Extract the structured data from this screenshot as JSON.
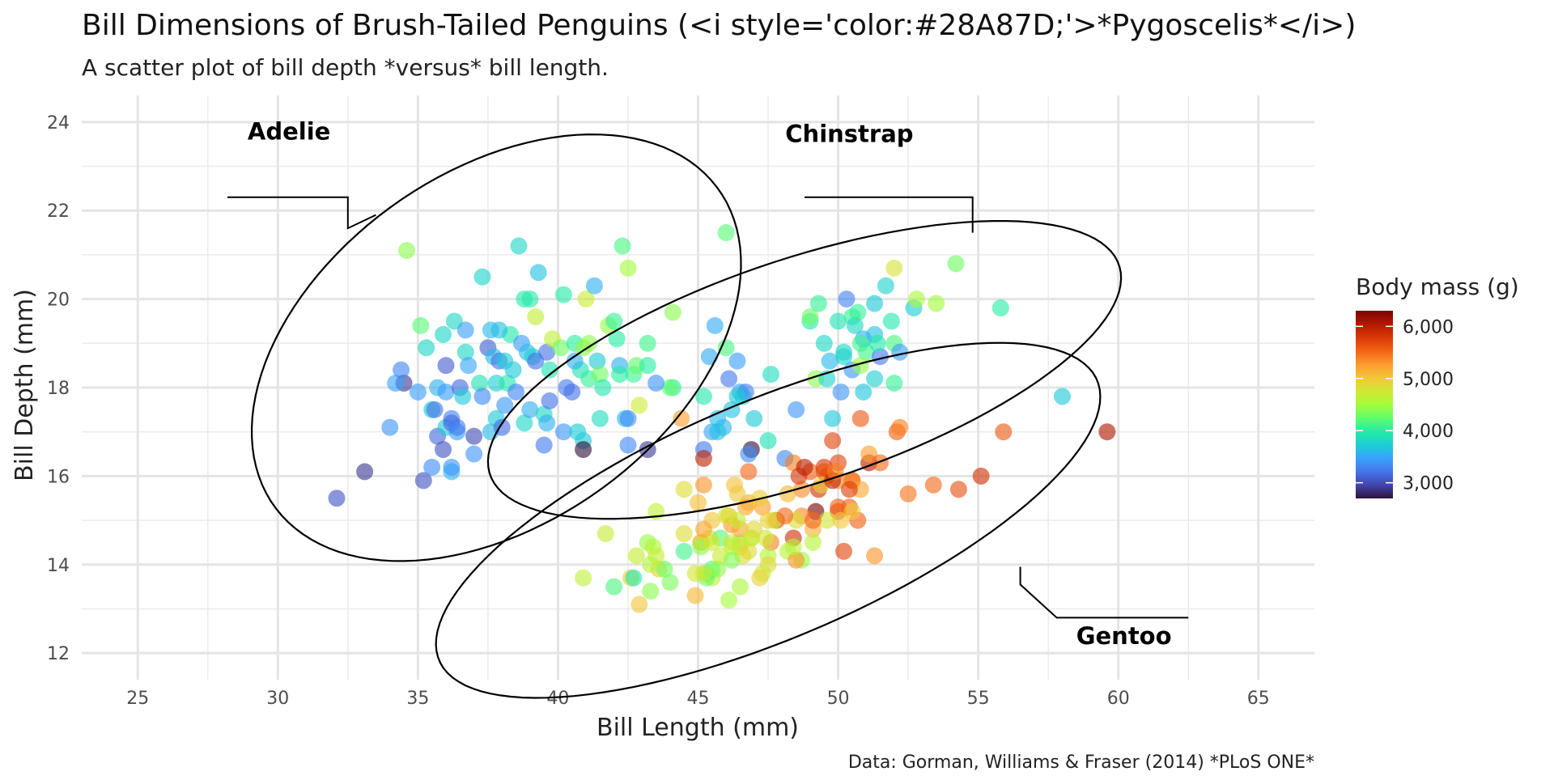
{
  "title": "Bill Dimensions of Brush-Tailed Penguins (<i style='color:#28A87D;'>*Pygoscelis*</i>)",
  "subtitle": "A scatter plot of bill depth *versus* bill length.",
  "caption": "Data: Gorman, Williams & Fraser (2014) *PLoS ONE*",
  "chart_data": {
    "type": "scatter",
    "xlabel": "Bill Length (mm)",
    "ylabel": "Bill Depth (mm)",
    "xlim": [
      23,
      67
    ],
    "ylim": [
      11.4,
      24.6
    ],
    "x_ticks": [
      "25",
      "30",
      "35",
      "40",
      "45",
      "50",
      "55",
      "60",
      "65"
    ],
    "y_ticks": [
      "12",
      "14",
      "16",
      "18",
      "20",
      "22",
      "24"
    ],
    "grid": true,
    "legend": {
      "title": "Body mass (g)",
      "placement": "right",
      "ticks": [
        "3,000",
        "4,000",
        "5,000",
        "6,000"
      ],
      "range": [
        2700,
        6300
      ],
      "palette": [
        "#30123B",
        "#4145AB",
        "#4675ED",
        "#39A2FC",
        "#1BCFD4",
        "#24ECA6",
        "#61FC6C",
        "#A4FC3B",
        "#D1E834",
        "#F3C63A",
        "#FE9B2D",
        "#F36315",
        "#D93806",
        "#B11901",
        "#7A0403"
      ]
    },
    "groups": [
      {
        "label": "Adelie",
        "center": [
          37.8,
          18.9
        ],
        "semi_x": 9.0,
        "semi_y": 4.3,
        "angle_deg": 16
      },
      {
        "label": "Chinstrap",
        "center": [
          48.8,
          18.4
        ],
        "semi_x": 11.5,
        "semi_y": 2.6,
        "angle_deg": 11
      },
      {
        "label": "Gentoo",
        "center": [
          47.5,
          15.0
        ],
        "semi_x": 12.2,
        "semi_y": 2.8,
        "angle_deg": 14
      }
    ],
    "points": [
      [
        32.1,
        15.5,
        3050
      ],
      [
        33.1,
        16.1,
        2900
      ],
      [
        34.5,
        18.1,
        2900
      ],
      [
        34.6,
        21.1,
        4400
      ],
      [
        34.0,
        17.1,
        3400
      ],
      [
        34.2,
        18.1,
        3475
      ],
      [
        34.4,
        18.4,
        3325
      ],
      [
        35.0,
        17.9,
        3450
      ],
      [
        35.1,
        19.4,
        4200
      ],
      [
        35.2,
        15.9,
        3050
      ],
      [
        35.3,
        18.9,
        3800
      ],
      [
        35.5,
        16.2,
        3350
      ],
      [
        35.5,
        17.5,
        3700
      ],
      [
        35.6,
        17.5,
        3200
      ],
      [
        35.7,
        16.9,
        3150
      ],
      [
        35.7,
        18.0,
        3550
      ],
      [
        35.9,
        19.2,
        3800
      ],
      [
        35.9,
        16.6,
        3050
      ],
      [
        36.0,
        17.9,
        3450
      ],
      [
        36.0,
        18.5,
        3100
      ],
      [
        36.0,
        17.1,
        3700
      ],
      [
        36.2,
        16.1,
        3550
      ],
      [
        36.2,
        17.3,
        3300
      ],
      [
        36.2,
        17.2,
        3150
      ],
      [
        36.3,
        19.5,
        3800
      ],
      [
        36.4,
        17.0,
        3450
      ],
      [
        36.5,
        18.0,
        3150
      ],
      [
        36.6,
        17.8,
        3700
      ],
      [
        36.7,
        18.8,
        3800
      ],
      [
        36.7,
        19.3,
        3450
      ],
      [
        36.8,
        18.5,
        3500
      ],
      [
        37.0,
        16.9,
        3000
      ],
      [
        37.2,
        18.1,
        3900
      ],
      [
        37.3,
        17.8,
        3350
      ],
      [
        37.5,
        18.9,
        3100
      ],
      [
        37.6,
        17.0,
        3600
      ],
      [
        37.7,
        18.7,
        3600
      ],
      [
        37.8,
        17.3,
        3700
      ],
      [
        37.8,
        18.1,
        3750
      ],
      [
        37.9,
        18.6,
        3200
      ],
      [
        38.1,
        18.6,
        3700
      ],
      [
        38.1,
        17.6,
        3425
      ],
      [
        38.2,
        18.1,
        3950
      ],
      [
        38.3,
        19.2,
        3950
      ],
      [
        38.5,
        17.9,
        3325
      ],
      [
        38.6,
        21.2,
        3800
      ],
      [
        38.7,
        19.0,
        3450
      ],
      [
        38.8,
        17.2,
        3800
      ],
      [
        38.9,
        18.8,
        3600
      ],
      [
        39.0,
        17.5,
        3550
      ],
      [
        39.1,
        18.7,
        3750
      ],
      [
        39.2,
        19.6,
        4675
      ],
      [
        39.3,
        20.6,
        3650
      ],
      [
        39.5,
        17.4,
        3800
      ],
      [
        39.6,
        18.8,
        3200
      ],
      [
        39.7,
        18.4,
        3900
      ],
      [
        39.8,
        19.1,
        4650
      ],
      [
        40.1,
        18.9,
        4300
      ],
      [
        40.2,
        17.0,
        3400
      ],
      [
        40.3,
        18.0,
        3250
      ],
      [
        40.5,
        17.9,
        3200
      ],
      [
        40.6,
        19.0,
        4000
      ],
      [
        40.7,
        17.0,
        3725
      ],
      [
        40.8,
        18.4,
        3900
      ],
      [
        40.9,
        16.8,
        3700
      ],
      [
        41.0,
        20.0,
        4725
      ],
      [
        41.1,
        18.2,
        4050
      ],
      [
        41.3,
        20.3,
        3550
      ],
      [
        41.4,
        18.6,
        3700
      ],
      [
        41.5,
        18.3,
        4300
      ],
      [
        41.6,
        18.0,
        3950
      ],
      [
        41.8,
        19.4,
        4450
      ],
      [
        42.0,
        19.5,
        4050
      ],
      [
        42.1,
        19.1,
        4000
      ],
      [
        42.2,
        18.5,
        3550
      ],
      [
        42.3,
        21.2,
        4150
      ],
      [
        42.5,
        20.7,
        4500
      ],
      [
        42.7,
        18.3,
        4075
      ],
      [
        42.8,
        18.5,
        4250
      ],
      [
        42.9,
        17.6,
        4725
      ],
      [
        43.2,
        19.0,
        4100
      ],
      [
        43.2,
        18.5,
        4000
      ],
      [
        44.1,
        19.7,
        4400
      ],
      [
        44.1,
        18.0,
        4000
      ],
      [
        38.0,
        17.1,
        3175
      ],
      [
        39.2,
        18.6,
        3200
      ],
      [
        37.0,
        16.5,
        3400
      ],
      [
        40.6,
        18.6,
        3550
      ],
      [
        39.7,
        17.7,
        3200
      ],
      [
        41.5,
        17.3,
        3850
      ],
      [
        44.0,
        18.0,
        4250
      ],
      [
        36.4,
        17.1,
        3250
      ],
      [
        38.4,
        18.4,
        3700
      ],
      [
        37.3,
        20.5,
        3775
      ],
      [
        36.2,
        16.2,
        3400
      ],
      [
        37.9,
        19.3,
        3650
      ],
      [
        41.1,
        19.0,
        4400
      ],
      [
        38.8,
        20.0,
        3950
      ],
      [
        39.6,
        17.2,
        3550
      ],
      [
        40.9,
        18.9,
        4400
      ],
      [
        39.5,
        16.7,
        3250
      ],
      [
        40.2,
        20.1,
        3975
      ],
      [
        39.0,
        20.0,
        3975
      ],
      [
        42.2,
        18.3,
        4000
      ],
      [
        37.6,
        19.3,
        3600
      ],
      [
        46.5,
        17.9,
        3500
      ],
      [
        50.0,
        19.5,
        3900
      ],
      [
        51.3,
        19.2,
        3650
      ],
      [
        45.4,
        18.7,
        3525
      ],
      [
        52.7,
        19.8,
        3725
      ],
      [
        45.2,
        17.8,
        3950
      ],
      [
        46.1,
        18.2,
        3250
      ],
      [
        51.3,
        18.2,
        3750
      ],
      [
        46.0,
        18.9,
        4150
      ],
      [
        51.3,
        19.9,
        3700
      ],
      [
        46.6,
        17.8,
        3800
      ],
      [
        51.7,
        20.3,
        3775
      ],
      [
        47.0,
        17.3,
        3700
      ],
      [
        52.0,
        18.1,
        4050
      ],
      [
        45.9,
        17.1,
        3575
      ],
      [
        50.5,
        19.6,
        4050
      ],
      [
        50.3,
        20.0,
        3300
      ],
      [
        58.0,
        17.8,
        3700
      ],
      [
        46.4,
        18.6,
        3450
      ],
      [
        49.2,
        18.2,
        4400
      ],
      [
        42.4,
        17.3,
        3600
      ],
      [
        48.5,
        17.5,
        3400
      ],
      [
        43.2,
        16.6,
        2900
      ],
      [
        50.6,
        19.4,
        3800
      ],
      [
        46.7,
        17.9,
        3300
      ],
      [
        52.0,
        19.0,
        4150
      ],
      [
        50.5,
        18.4,
        3400
      ],
      [
        49.5,
        19.0,
        3800
      ],
      [
        46.4,
        17.8,
        3700
      ],
      [
        52.8,
        20.0,
        4550
      ],
      [
        40.9,
        16.6,
        2700
      ],
      [
        54.2,
        20.8,
        4300
      ],
      [
        42.5,
        16.7,
        3350
      ],
      [
        51.0,
        18.8,
        4100
      ],
      [
        49.7,
        18.6,
        3600
      ],
      [
        47.5,
        16.8,
        3900
      ],
      [
        47.6,
        18.3,
        3850
      ],
      [
        52.0,
        20.7,
        4800
      ],
      [
        46.9,
        16.6,
        2700
      ],
      [
        53.5,
        19.9,
        4500
      ],
      [
        49.0,
        19.5,
        3950
      ],
      [
        46.2,
        17.5,
        3650
      ],
      [
        50.9,
        19.1,
        3550
      ],
      [
        45.5,
        17.0,
        3500
      ],
      [
        50.9,
        17.9,
        3675
      ],
      [
        50.8,
        18.5,
        4450
      ],
      [
        50.1,
        17.9,
        3400
      ],
      [
        49.0,
        19.6,
        4300
      ],
      [
        51.5,
        18.7,
        3250
      ],
      [
        49.8,
        17.3,
        3675
      ],
      [
        48.1,
        16.4,
        3325
      ],
      [
        51.4,
        19.0,
        3950
      ],
      [
        45.7,
        17.3,
        3600
      ],
      [
        50.7,
        19.7,
        4050
      ],
      [
        42.5,
        17.3,
        3350
      ],
      [
        52.2,
        18.8,
        3450
      ],
      [
        45.2,
        16.6,
        3250
      ],
      [
        49.3,
        19.9,
        4050
      ],
      [
        50.2,
        18.8,
        3800
      ],
      [
        45.6,
        19.4,
        3525
      ],
      [
        51.9,
        19.5,
        3950
      ],
      [
        46.8,
        16.5,
        3350
      ],
      [
        45.7,
        17.0,
        3650
      ],
      [
        55.8,
        19.8,
        4000
      ],
      [
        43.5,
        18.1,
        3400
      ],
      [
        49.6,
        18.2,
        3775
      ],
      [
        50.8,
        19.0,
        4100
      ],
      [
        50.2,
        18.7,
        3775
      ],
      [
        46.0,
        21.5,
        4200
      ],
      [
        46.1,
        13.2,
        4500
      ],
      [
        50.0,
        16.3,
        5700
      ],
      [
        48.7,
        14.1,
        4450
      ],
      [
        50.0,
        15.2,
        5700
      ],
      [
        47.6,
        14.5,
        5400
      ],
      [
        46.5,
        13.5,
        4550
      ],
      [
        45.4,
        14.6,
        4800
      ],
      [
        46.7,
        15.3,
        5200
      ],
      [
        43.3,
        13.4,
        4400
      ],
      [
        46.8,
        15.4,
        5150
      ],
      [
        40.9,
        13.7,
        4650
      ],
      [
        49.0,
        16.1,
        5550
      ],
      [
        45.5,
        13.7,
        4650
      ],
      [
        48.4,
        14.6,
        5850
      ],
      [
        45.8,
        14.6,
        4200
      ],
      [
        49.3,
        15.7,
        5850
      ],
      [
        42.0,
        13.5,
        4150
      ],
      [
        49.2,
        15.2,
        6300
      ],
      [
        46.2,
        14.5,
        4800
      ],
      [
        48.7,
        15.1,
        5350
      ],
      [
        50.2,
        14.3,
        5700
      ],
      [
        45.1,
        14.5,
        5000
      ],
      [
        46.5,
        14.5,
        4400
      ],
      [
        46.3,
        15.8,
        5050
      ],
      [
        42.9,
        13.1,
        5000
      ],
      [
        46.1,
        15.1,
        5100
      ],
      [
        44.5,
        14.3,
        4100
      ],
      [
        47.8,
        15.0,
        5650
      ],
      [
        48.2,
        14.3,
        4600
      ],
      [
        50.0,
        15.3,
        5550
      ],
      [
        47.3,
        15.3,
        5250
      ],
      [
        42.8,
        14.2,
        4700
      ],
      [
        45.1,
        14.5,
        5050
      ],
      [
        59.6,
        17.0,
        6050
      ],
      [
        49.1,
        14.8,
        5150
      ],
      [
        48.4,
        16.3,
        5400
      ],
      [
        42.6,
        13.7,
        4950
      ],
      [
        44.4,
        17.3,
        5250
      ],
      [
        44.0,
        13.6,
        4350
      ],
      [
        48.7,
        15.7,
        5350
      ],
      [
        42.7,
        13.7,
        3950
      ],
      [
        49.6,
        16.0,
        5700
      ],
      [
        45.3,
        13.7,
        4300
      ],
      [
        49.6,
        15.0,
        4750
      ],
      [
        50.5,
        15.9,
        5550
      ],
      [
        43.6,
        13.9,
        4900
      ],
      [
        45.5,
        13.9,
        4200
      ],
      [
        50.5,
        15.9,
        5400
      ],
      [
        44.9,
        13.3,
        5100
      ],
      [
        45.2,
        15.8,
        5300
      ],
      [
        46.6,
        14.2,
        4850
      ],
      [
        48.5,
        14.1,
        5300
      ],
      [
        45.1,
        14.4,
        4400
      ],
      [
        50.1,
        15.0,
        5000
      ],
      [
        46.5,
        14.4,
        4900
      ],
      [
        45.0,
        15.4,
        5050
      ],
      [
        43.8,
        13.9,
        4300
      ],
      [
        45.5,
        15.0,
        5000
      ],
      [
        43.2,
        14.5,
        4450
      ],
      [
        50.4,
        15.3,
        5550
      ],
      [
        45.3,
        13.8,
        4200
      ],
      [
        46.2,
        14.9,
        5300
      ],
      [
        45.7,
        13.9,
        4400
      ],
      [
        54.3,
        15.7,
        5650
      ],
      [
        45.8,
        14.2,
        4700
      ],
      [
        49.8,
        16.8,
        5700
      ],
      [
        46.2,
        14.4,
        4650
      ],
      [
        49.5,
        16.2,
        5800
      ],
      [
        43.5,
        14.2,
        4700
      ],
      [
        50.7,
        15.0,
        5550
      ],
      [
        47.7,
        15.0,
        4750
      ],
      [
        46.4,
        15.6,
        5000
      ],
      [
        48.2,
        15.6,
        5100
      ],
      [
        46.5,
        14.8,
        5200
      ],
      [
        46.4,
        15.0,
        4700
      ],
      [
        48.6,
        16.0,
        5800
      ],
      [
        47.5,
        14.2,
        4600
      ],
      [
        51.1,
        16.3,
        6000
      ],
      [
        45.2,
        13.8,
        4750
      ],
      [
        45.2,
        16.4,
        5950
      ],
      [
        49.1,
        14.5,
        4625
      ],
      [
        52.5,
        15.6,
        5450
      ],
      [
        47.4,
        14.6,
        4725
      ],
      [
        50.0,
        15.9,
        5350
      ],
      [
        44.9,
        13.8,
        4750
      ],
      [
        50.8,
        17.3,
        5600
      ],
      [
        43.4,
        14.4,
        4600
      ],
      [
        51.3,
        14.2,
        5300
      ],
      [
        47.5,
        14.0,
        4875
      ],
      [
        52.1,
        17.0,
        5550
      ],
      [
        47.5,
        15.0,
        4950
      ],
      [
        52.2,
        17.1,
        5400
      ],
      [
        45.5,
        14.5,
        4750
      ],
      [
        49.5,
        16.1,
        5650
      ],
      [
        44.5,
        14.7,
        4850
      ],
      [
        50.8,
        15.7,
        5200
      ],
      [
        49.4,
        15.8,
        4925
      ],
      [
        46.9,
        14.6,
        4875
      ],
      [
        48.4,
        14.4,
        4625
      ],
      [
        51.1,
        16.5,
        5250
      ],
      [
        48.5,
        15.0,
        4850
      ],
      [
        55.9,
        17.0,
        5600
      ],
      [
        47.2,
        15.5,
        4975
      ],
      [
        49.1,
        15.0,
        5500
      ],
      [
        47.3,
        13.8,
        4725
      ],
      [
        46.8,
        16.1,
        5500
      ],
      [
        41.7,
        14.7,
        4700
      ],
      [
        53.4,
        15.8,
        5500
      ],
      [
        43.3,
        14.0,
        4575
      ],
      [
        48.1,
        15.1,
        5500
      ],
      [
        50.5,
        15.2,
        5000
      ],
      [
        49.8,
        15.9,
        5950
      ],
      [
        43.5,
        15.2,
        4650
      ],
      [
        51.5,
        16.3,
        5500
      ],
      [
        46.2,
        14.1,
        4375
      ],
      [
        55.1,
        16.0,
        5850
      ],
      [
        48.8,
        16.2,
        6000
      ],
      [
        47.2,
        13.7,
        4925
      ],
      [
        46.8,
        14.3,
        4850
      ],
      [
        50.4,
        15.7,
        5750
      ],
      [
        45.2,
        14.8,
        5200
      ],
      [
        49.9,
        16.1,
        5400
      ],
      [
        44.5,
        15.7,
        4850
      ],
      [
        46.9,
        14.6,
        4650
      ],
      [
        47.0,
        14.8,
        4875
      ],
      [
        46.0,
        15.1,
        4750
      ]
    ]
  }
}
